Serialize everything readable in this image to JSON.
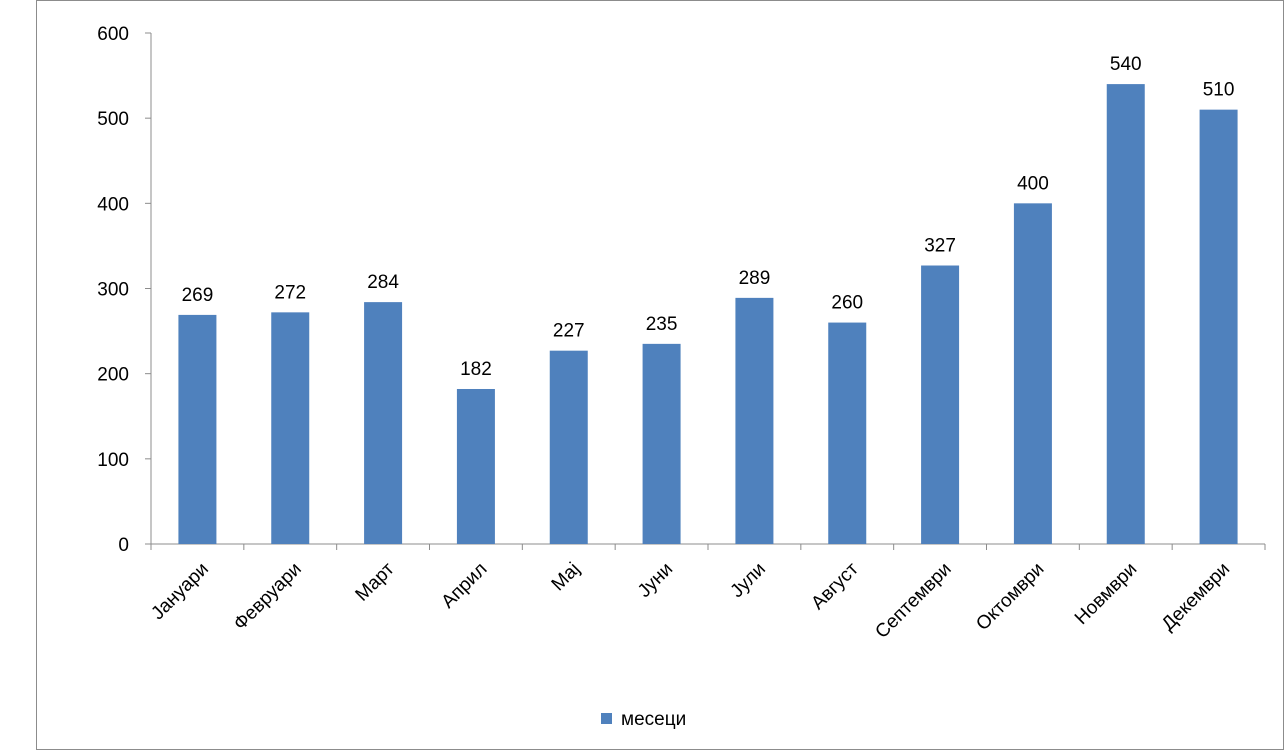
{
  "chart_data": {
    "type": "bar",
    "categories": [
      "Јануари",
      "Февруари",
      "Март",
      "Април",
      "Мај",
      "Јуни",
      "Јули",
      "Август",
      "Септември",
      "Октомври",
      "Новмври",
      "Декември"
    ],
    "series": [
      {
        "name": "месеци",
        "values": [
          269,
          272,
          284,
          182,
          227,
          235,
          289,
          260,
          327,
          400,
          540,
          510
        ],
        "color": "#4f81bd"
      }
    ],
    "ylim": [
      0,
      600
    ],
    "yticks": [
      0,
      100,
      200,
      300,
      400,
      500,
      600
    ],
    "grid": false,
    "data_labels": true,
    "legend_position": "bottom",
    "title": "",
    "xlabel": "",
    "ylabel": ""
  }
}
